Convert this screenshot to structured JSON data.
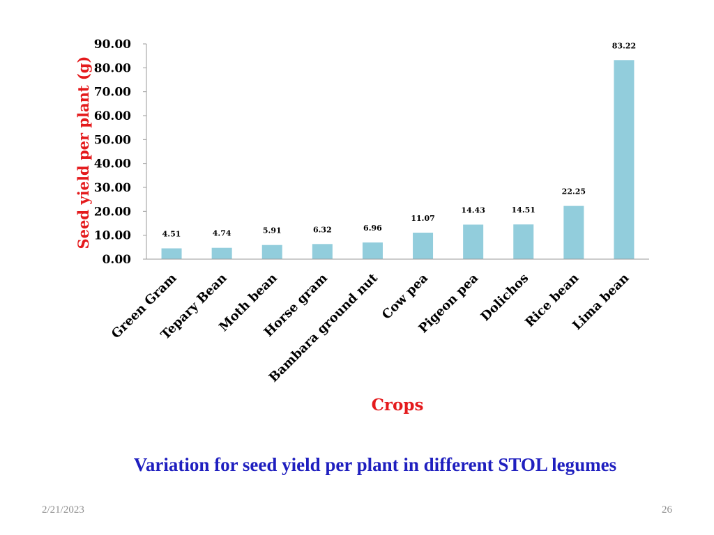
{
  "slide": {
    "caption": "Variation for seed yield per plant in different STOL legumes",
    "date": "2/21/2023",
    "page_number": "26"
  },
  "chart_data": {
    "type": "bar",
    "categories": [
      "Green Gram",
      "Tepary Bean",
      "Moth bean",
      "Horse gram",
      "Bambara ground nut",
      "Cow pea",
      "Pigeon pea",
      "Dolichos",
      "Rice bean",
      "Lima bean"
    ],
    "values": [
      4.51,
      4.74,
      5.91,
      6.32,
      6.96,
      11.07,
      14.43,
      14.51,
      22.25,
      83.22
    ],
    "value_labels": [
      "4.51",
      "4.74",
      "5.91",
      "6.32",
      "6.96",
      "11.07",
      "14.43",
      "14.51",
      "22.25",
      "83.22"
    ],
    "title": "",
    "xlabel": "Crops",
    "ylabel": "Seed yield per plant (g)",
    "ylim": [
      0,
      90
    ],
    "yticks": [
      0,
      10,
      20,
      30,
      40,
      50,
      60,
      70,
      80,
      90
    ],
    "ytick_labels": [
      "0.00",
      "10.00",
      "20.00",
      "30.00",
      "40.00",
      "50.00",
      "60.00",
      "70.00",
      "80.00",
      "90.00"
    ],
    "grid": false,
    "legend": "none",
    "colors": {
      "bar": "#92cddc",
      "axis_label": "#e41a1c",
      "axis_line": "#9a9a9a",
      "caption": "#1f1fbf"
    }
  }
}
